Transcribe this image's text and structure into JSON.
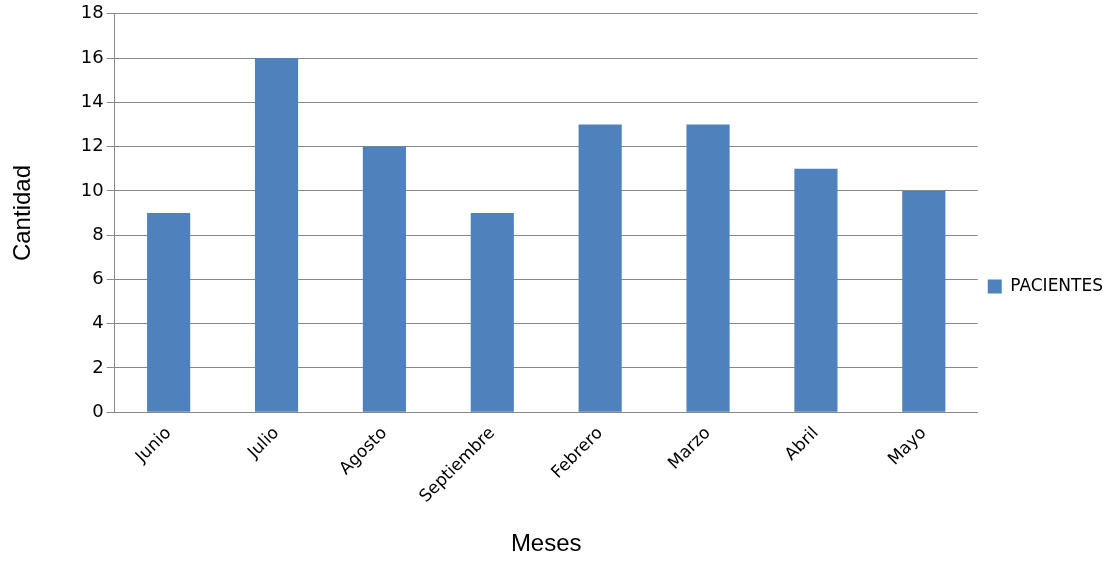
{
  "chart_data": {
    "type": "bar",
    "xlabel": "Meses",
    "ylabel": "Cantidad",
    "categories": [
      "Junio",
      "Julio",
      "Agosto",
      "Septiembre",
      "Febrero",
      "Marzo",
      "Abril",
      "Mayo"
    ],
    "series": [
      {
        "name": "PACIENTES",
        "color": "#4f81bd",
        "values": [
          9,
          16,
          12,
          9,
          13,
          13,
          11,
          10
        ]
      }
    ],
    "ylim": [
      0,
      18
    ],
    "yticks": [
      0,
      2,
      4,
      6,
      8,
      10,
      12,
      14,
      16,
      18
    ],
    "grid": "y",
    "legend": "right"
  }
}
